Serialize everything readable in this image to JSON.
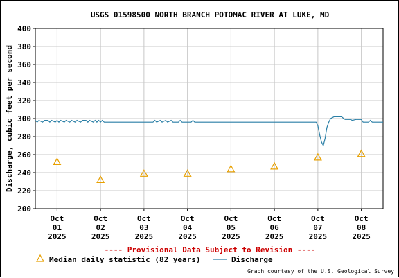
{
  "chart_data": {
    "type": "line",
    "title": "USGS 01598500 NORTH BRANCH POTOMAC RIVER AT LUKE, MD",
    "ylabel": "Discharge, cubic feet per second",
    "xlabel": "",
    "ylim": [
      200,
      400
    ],
    "yticks": [
      200,
      220,
      240,
      260,
      280,
      300,
      320,
      340,
      360,
      380,
      400
    ],
    "grid": true,
    "xlim": [
      "2025-09-30T12:00",
      "2025-10-08T12:00"
    ],
    "x_ticks": [
      {
        "date": "2025-10-01",
        "month": "Oct",
        "day": "01",
        "year": "2025"
      },
      {
        "date": "2025-10-02",
        "month": "Oct",
        "day": "02",
        "year": "2025"
      },
      {
        "date": "2025-10-03",
        "month": "Oct",
        "day": "03",
        "year": "2025"
      },
      {
        "date": "2025-10-04",
        "month": "Oct",
        "day": "04",
        "year": "2025"
      },
      {
        "date": "2025-10-05",
        "month": "Oct",
        "day": "05",
        "year": "2025"
      },
      {
        "date": "2025-10-06",
        "month": "Oct",
        "day": "06",
        "year": "2025"
      },
      {
        "date": "2025-10-07",
        "month": "Oct",
        "day": "07",
        "year": "2025"
      },
      {
        "date": "2025-10-08",
        "month": "Oct",
        "day": "08",
        "year": "2025"
      }
    ],
    "series": [
      {
        "name": "Discharge",
        "color": "#2a7fa6",
        "points": [
          [
            "2025-09-30T12:00",
            298
          ],
          [
            "2025-09-30T13:00",
            296
          ],
          [
            "2025-09-30T14:00",
            298
          ],
          [
            "2025-09-30T16:00",
            296
          ],
          [
            "2025-09-30T17:00",
            298
          ],
          [
            "2025-09-30T19:00",
            298
          ],
          [
            "2025-09-30T20:00",
            296
          ],
          [
            "2025-09-30T21:00",
            298
          ],
          [
            "2025-09-30T23:00",
            296
          ],
          [
            "2025-10-01T00:00",
            298
          ],
          [
            "2025-10-01T01:00",
            296
          ],
          [
            "2025-10-01T02:00",
            298
          ],
          [
            "2025-10-01T04:00",
            296
          ],
          [
            "2025-10-01T05:00",
            298
          ],
          [
            "2025-10-01T07:00",
            296
          ],
          [
            "2025-10-01T08:00",
            298
          ],
          [
            "2025-10-01T10:00",
            296
          ],
          [
            "2025-10-01T11:00",
            298
          ],
          [
            "2025-10-01T13:00",
            296
          ],
          [
            "2025-10-01T14:00",
            298
          ],
          [
            "2025-10-01T16:00",
            298
          ],
          [
            "2025-10-01T17:00",
            296
          ],
          [
            "2025-10-01T18:00",
            298
          ],
          [
            "2025-10-01T20:00",
            296
          ],
          [
            "2025-10-01T21:00",
            298
          ],
          [
            "2025-10-01T22:00",
            296
          ],
          [
            "2025-10-01T23:00",
            298
          ],
          [
            "2025-10-02T00:00",
            296
          ],
          [
            "2025-10-02T01:00",
            298
          ],
          [
            "2025-10-02T02:00",
            296
          ],
          [
            "2025-10-02T04:00",
            296
          ],
          [
            "2025-10-02T12:00",
            296
          ],
          [
            "2025-10-03T00:00",
            296
          ],
          [
            "2025-10-03T05:00",
            296
          ],
          [
            "2025-10-03T06:00",
            298
          ],
          [
            "2025-10-03T07:00",
            296
          ],
          [
            "2025-10-03T09:00",
            298
          ],
          [
            "2025-10-03T10:00",
            296
          ],
          [
            "2025-10-03T12:00",
            298
          ],
          [
            "2025-10-03T13:00",
            296
          ],
          [
            "2025-10-03T15:00",
            298
          ],
          [
            "2025-10-03T16:00",
            296
          ],
          [
            "2025-10-03T19:00",
            296
          ],
          [
            "2025-10-03T20:00",
            298
          ],
          [
            "2025-10-03T21:00",
            296
          ],
          [
            "2025-10-04T00:00",
            296
          ],
          [
            "2025-10-04T02:00",
            296
          ],
          [
            "2025-10-04T03:00",
            298
          ],
          [
            "2025-10-04T04:00",
            296
          ],
          [
            "2025-10-05T00:00",
            296
          ],
          [
            "2025-10-06T00:00",
            296
          ],
          [
            "2025-10-06T23:00",
            296
          ],
          [
            "2025-10-07T00:00",
            292
          ],
          [
            "2025-10-07T01:00",
            282
          ],
          [
            "2025-10-07T02:00",
            274
          ],
          [
            "2025-10-07T03:00",
            270
          ],
          [
            "2025-10-07T04:00",
            278
          ],
          [
            "2025-10-07T05:00",
            290
          ],
          [
            "2025-10-07T06:00",
            296
          ],
          [
            "2025-10-07T07:00",
            300
          ],
          [
            "2025-10-07T09:00",
            302
          ],
          [
            "2025-10-07T13:00",
            302
          ],
          [
            "2025-10-07T15:00",
            299
          ],
          [
            "2025-10-07T18:00",
            299
          ],
          [
            "2025-10-07T19:00",
            298
          ],
          [
            "2025-10-07T21:00",
            299
          ],
          [
            "2025-10-08T00:00",
            299
          ],
          [
            "2025-10-08T01:00",
            296
          ],
          [
            "2025-10-08T04:00",
            296
          ],
          [
            "2025-10-08T05:00",
            298
          ],
          [
            "2025-10-08T06:00",
            296
          ],
          [
            "2025-10-08T12:00",
            296
          ]
        ]
      },
      {
        "name": "Median daily statistic (82 years)",
        "color": "#e8a000",
        "marker": "triangle",
        "points": [
          [
            "2025-10-01",
            252
          ],
          [
            "2025-10-02",
            232
          ],
          [
            "2025-10-03",
            239
          ],
          [
            "2025-10-04",
            239
          ],
          [
            "2025-10-05",
            244
          ],
          [
            "2025-10-06",
            247
          ],
          [
            "2025-10-07",
            257
          ],
          [
            "2025-10-08",
            261
          ]
        ]
      }
    ],
    "notice": "---- Provisional Data Subject to Revision ----",
    "notice_color": "#cc0000",
    "legend": {
      "position": "bottom",
      "median_label": "Median daily statistic (82 years)",
      "discharge_label": "Discharge"
    },
    "credit": "Graph courtesy of the U.S. Geological Survey"
  }
}
